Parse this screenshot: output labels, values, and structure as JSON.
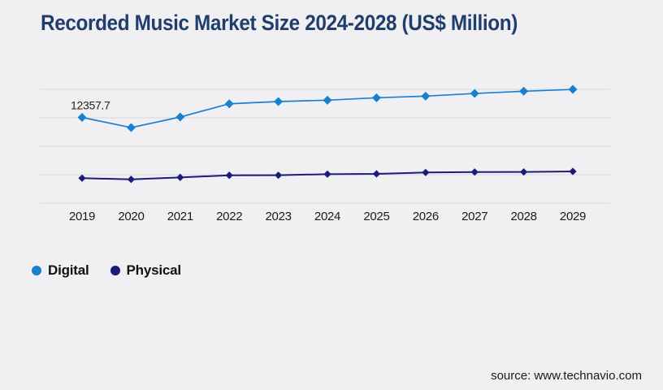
{
  "title": "Recorded Music Market Size 2024-2028 (US$ Million)",
  "source": {
    "text": "source: www.technavio.com"
  },
  "colors": {
    "background": "#f0f0f2",
    "gridline": "#d9d9db",
    "title": "#1f3e6e",
    "tick_label": "#1a1a1a",
    "data_label": "#222222",
    "digital": "#1980d0",
    "physical": "#1c1a7c"
  },
  "legend": {
    "items": [
      {
        "label": "Digital",
        "color": "#1980d0"
      },
      {
        "label": "Physical",
        "color": "#1c1a7c"
      }
    ]
  },
  "chart_data": {
    "type": "line",
    "title": "Recorded Music Market Size 2024-2028 (US$ Million)",
    "categories": [
      "2019",
      "2020",
      "2021",
      "2022",
      "2023",
      "2024",
      "2025",
      "2026",
      "2027",
      "2028",
      "2029"
    ],
    "series": [
      {
        "name": "Digital",
        "color": "#1980d0",
        "marker": "diamond",
        "values": [
          12357.7,
          10890,
          12415,
          14325,
          14640,
          14840,
          15190,
          15425,
          15810,
          16130,
          16395
        ]
      },
      {
        "name": "Physical",
        "color": "#1c1a7c",
        "marker": "diamond",
        "values": [
          3595,
          3430,
          3710,
          4015,
          4020,
          4180,
          4215,
          4415,
          4485,
          4490,
          4570
        ]
      }
    ],
    "point_label": {
      "series": "Digital",
      "category": "2019",
      "text": "12357.7"
    },
    "xlabel": "",
    "ylabel": "",
    "ylim": [
      0,
      16400
    ],
    "y_axis_labels_visible": false,
    "gridlines": {
      "horizontal_count": 5,
      "vertical": false
    },
    "legend_position": "bottom-left"
  }
}
